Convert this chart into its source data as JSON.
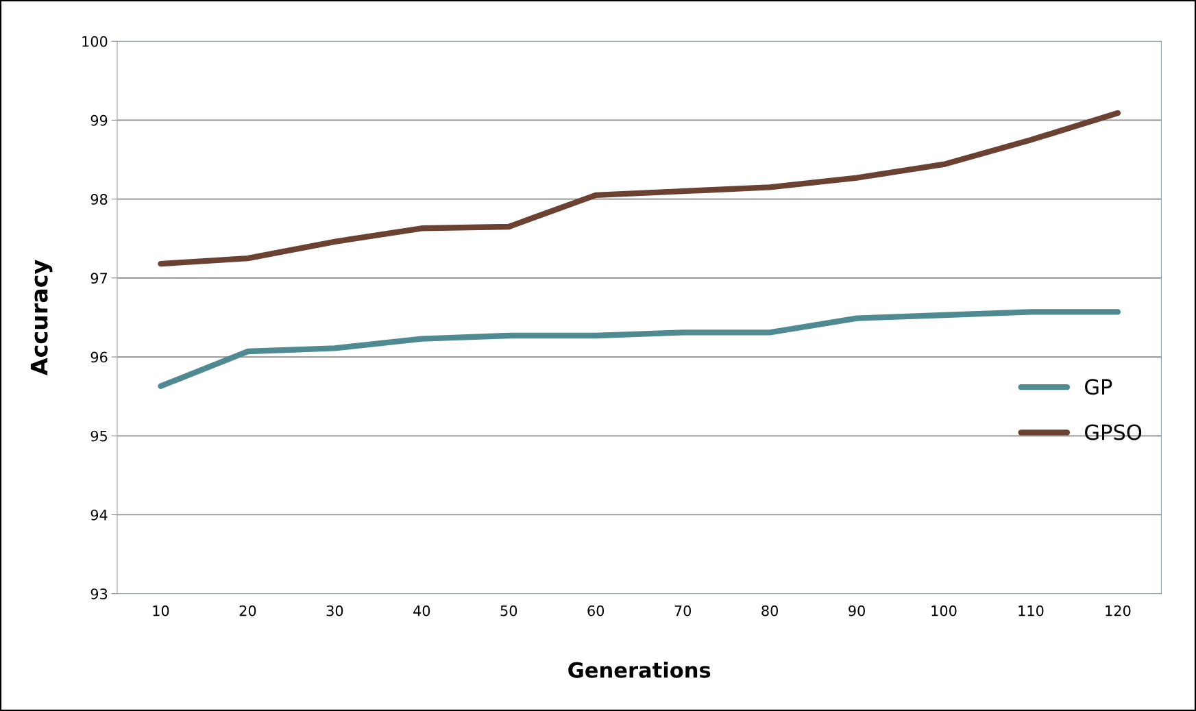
{
  "chart_data": {
    "type": "line",
    "xlabel": "Generations",
    "ylabel": "Accuracy",
    "categories": [
      "10",
      "20",
      "30",
      "40",
      "50",
      "60",
      "70",
      "80",
      "90",
      "100",
      "110",
      "120"
    ],
    "series": [
      {
        "name": "GP",
        "color": "#4f8a93",
        "values": [
          95.63,
          96.07,
          96.11,
          96.23,
          96.27,
          96.27,
          96.31,
          96.31,
          96.49,
          96.53,
          96.57,
          96.57
        ]
      },
      {
        "name": "GPSO",
        "color": "#6b4232",
        "values": [
          97.18,
          97.25,
          97.46,
          97.63,
          97.65,
          98.05,
          98.1,
          98.15,
          98.27,
          98.44,
          98.75,
          99.09
        ]
      }
    ],
    "ylim": [
      93,
      100
    ],
    "yticks": [
      93,
      94,
      95,
      96,
      97,
      98,
      99,
      100
    ],
    "grid": "y",
    "legend": "right",
    "marker": "none",
    "line_style": "solid"
  }
}
